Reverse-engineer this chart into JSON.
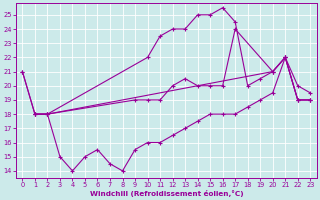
{
  "xlabel": "Windchill (Refroidissement éolien,°C)",
  "bg_color": "#cceaea",
  "grid_color": "#aacccc",
  "line_color": "#990099",
  "xlim": [
    -0.5,
    23.5
  ],
  "ylim": [
    13.5,
    25.8
  ],
  "yticks": [
    14,
    15,
    16,
    17,
    18,
    19,
    20,
    21,
    22,
    23,
    24,
    25
  ],
  "xticks": [
    0,
    1,
    2,
    3,
    4,
    5,
    6,
    7,
    8,
    9,
    10,
    11,
    12,
    13,
    14,
    15,
    16,
    17,
    18,
    19,
    20,
    21,
    22,
    23
  ],
  "curves": [
    {
      "x": [
        0,
        1,
        2,
        10,
        11,
        12,
        13,
        14,
        15,
        16,
        17,
        18,
        19,
        20,
        21,
        22,
        23
      ],
      "y": [
        21,
        18,
        18,
        22,
        23.5,
        24,
        24,
        25,
        25,
        25.5,
        24.5,
        20,
        20.5,
        21,
        22,
        19,
        19
      ]
    },
    {
      "x": [
        0,
        1,
        2,
        9,
        10,
        11,
        12,
        13,
        14,
        15,
        16,
        17,
        20,
        21,
        22,
        23
      ],
      "y": [
        21,
        18,
        18,
        19,
        19,
        19,
        20,
        20.5,
        20,
        20,
        20,
        24,
        21,
        22,
        19,
        19
      ]
    },
    {
      "x": [
        1,
        2,
        20,
        21,
        22,
        23
      ],
      "y": [
        18,
        18,
        21,
        22,
        19,
        19
      ]
    },
    {
      "x": [
        1,
        2,
        3,
        4,
        5,
        6,
        7,
        8,
        9,
        10,
        11,
        12,
        13,
        14,
        15,
        16,
        17,
        18,
        19,
        20,
        21,
        22,
        23
      ],
      "y": [
        18,
        18,
        15,
        14,
        15,
        15.5,
        14.5,
        14,
        15.5,
        16,
        16,
        16.5,
        17,
        17.5,
        18,
        18,
        18,
        18.5,
        19,
        19.5,
        22,
        20,
        19.5
      ]
    }
  ]
}
